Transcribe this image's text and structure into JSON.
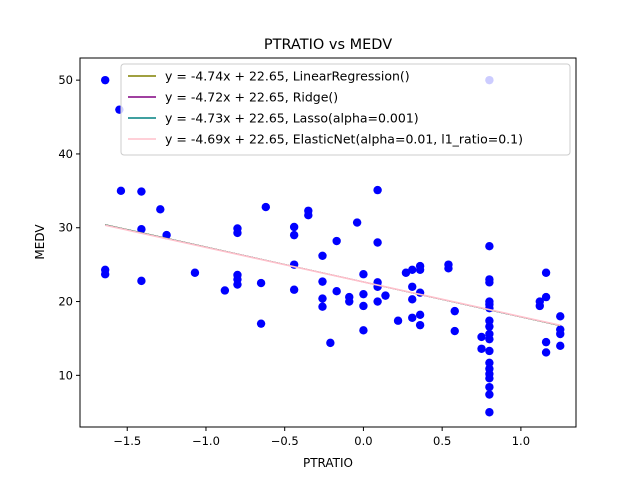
{
  "chart_data": {
    "type": "scatter",
    "title": "PTRATIO vs MEDV",
    "xlabel": "PTRATIO",
    "ylabel": "MEDV",
    "xlim": [
      -1.8,
      1.35
    ],
    "ylim": [
      3,
      53
    ],
    "xticks": [
      -1.5,
      -1.0,
      -0.5,
      0.0,
      0.5,
      1.0
    ],
    "xtick_labels": [
      "−1.5",
      "−1.0",
      "−0.5",
      "0.0",
      "0.5",
      "1.0"
    ],
    "yticks": [
      10,
      20,
      30,
      40,
      50
    ],
    "ytick_labels": [
      "10",
      "20",
      "30",
      "40",
      "50"
    ],
    "grid": false,
    "legend_position": "top-right",
    "scatter_color": "#0000ff",
    "points": [
      [
        -1.64,
        50.0
      ],
      [
        -1.55,
        46.0
      ],
      [
        -1.54,
        35.0
      ],
      [
        -1.41,
        34.9
      ],
      [
        -1.41,
        29.8
      ],
      [
        -1.29,
        32.5
      ],
      [
        -1.25,
        29.0
      ],
      [
        -1.64,
        24.3
      ],
      [
        -1.64,
        23.7
      ],
      [
        -1.41,
        22.8
      ],
      [
        -1.07,
        23.9
      ],
      [
        -0.88,
        21.5
      ],
      [
        -0.8,
        29.9
      ],
      [
        -0.8,
        29.3
      ],
      [
        -0.8,
        23.6
      ],
      [
        -0.8,
        23.0
      ],
      [
        -0.8,
        22.3
      ],
      [
        -0.65,
        22.5
      ],
      [
        -0.65,
        17.0
      ],
      [
        -0.62,
        32.8
      ],
      [
        -0.44,
        30.1
      ],
      [
        -0.44,
        29.0
      ],
      [
        -0.44,
        25.0
      ],
      [
        -0.44,
        21.6
      ],
      [
        -0.35,
        32.3
      ],
      [
        -0.35,
        31.7
      ],
      [
        -0.26,
        26.2
      ],
      [
        -0.26,
        22.7
      ],
      [
        -0.26,
        20.4
      ],
      [
        -0.26,
        19.3
      ],
      [
        -0.17,
        28.2
      ],
      [
        -0.17,
        21.4
      ],
      [
        -0.21,
        14.4
      ],
      [
        -0.09,
        20.6
      ],
      [
        -0.09,
        20.0
      ],
      [
        -0.04,
        30.7
      ],
      [
        0.0,
        23.7
      ],
      [
        0.0,
        21.0
      ],
      [
        0.0,
        19.4
      ],
      [
        0.0,
        16.1
      ],
      [
        0.09,
        35.1
      ],
      [
        0.09,
        28.0
      ],
      [
        0.09,
        22.6
      ],
      [
        0.09,
        22.0
      ],
      [
        0.09,
        20.0
      ],
      [
        0.14,
        20.8
      ],
      [
        0.22,
        17.4
      ],
      [
        0.27,
        23.9
      ],
      [
        0.31,
        24.3
      ],
      [
        0.31,
        22.0
      ],
      [
        0.31,
        20.3
      ],
      [
        0.31,
        17.8
      ],
      [
        0.36,
        24.8
      ],
      [
        0.36,
        24.3
      ],
      [
        0.36,
        21.2
      ],
      [
        0.36,
        18.2
      ],
      [
        0.36,
        16.8
      ],
      [
        0.54,
        25.0
      ],
      [
        0.54,
        24.5
      ],
      [
        0.58,
        18.7
      ],
      [
        0.58,
        16.0
      ],
      [
        0.75,
        15.2
      ],
      [
        0.75,
        13.6
      ],
      [
        0.8,
        50.0
      ],
      [
        0.8,
        27.5
      ],
      [
        0.8,
        23.0
      ],
      [
        0.8,
        22.6
      ],
      [
        0.8,
        20.0
      ],
      [
        0.8,
        19.6
      ],
      [
        0.8,
        19.1
      ],
      [
        0.8,
        17.4
      ],
      [
        0.8,
        16.6
      ],
      [
        0.8,
        15.6
      ],
      [
        0.8,
        14.9
      ],
      [
        0.8,
        13.3
      ],
      [
        0.8,
        11.7
      ],
      [
        0.8,
        10.9
      ],
      [
        0.8,
        10.2
      ],
      [
        0.8,
        9.6
      ],
      [
        0.8,
        8.4
      ],
      [
        0.8,
        7.4
      ],
      [
        0.8,
        5.0
      ],
      [
        1.12,
        20.0
      ],
      [
        1.12,
        19.4
      ],
      [
        1.16,
        23.9
      ],
      [
        1.16,
        20.6
      ],
      [
        1.16,
        14.5
      ],
      [
        1.16,
        13.1
      ],
      [
        1.25,
        18.0
      ],
      [
        1.25,
        16.2
      ],
      [
        1.25,
        15.6
      ],
      [
        1.25,
        14.0
      ]
    ],
    "x_range": [
      -1.64,
      1.25
    ],
    "series": [
      {
        "name": "y = -4.74x + 22.65, LinearRegression()",
        "slope": -4.74,
        "intercept": 22.65,
        "color": "#808000"
      },
      {
        "name": "y = -4.72x + 22.65, Ridge()",
        "slope": -4.72,
        "intercept": 22.65,
        "color": "#800080"
      },
      {
        "name": "y = -4.73x + 22.65, Lasso(alpha=0.001)",
        "slope": -4.73,
        "intercept": 22.65,
        "color": "#008080"
      },
      {
        "name": "y = -4.69x + 22.65, ElasticNet(alpha=0.01, l1_ratio=0.1)",
        "slope": -4.69,
        "intercept": 22.65,
        "color": "#ffc0cb"
      }
    ]
  }
}
